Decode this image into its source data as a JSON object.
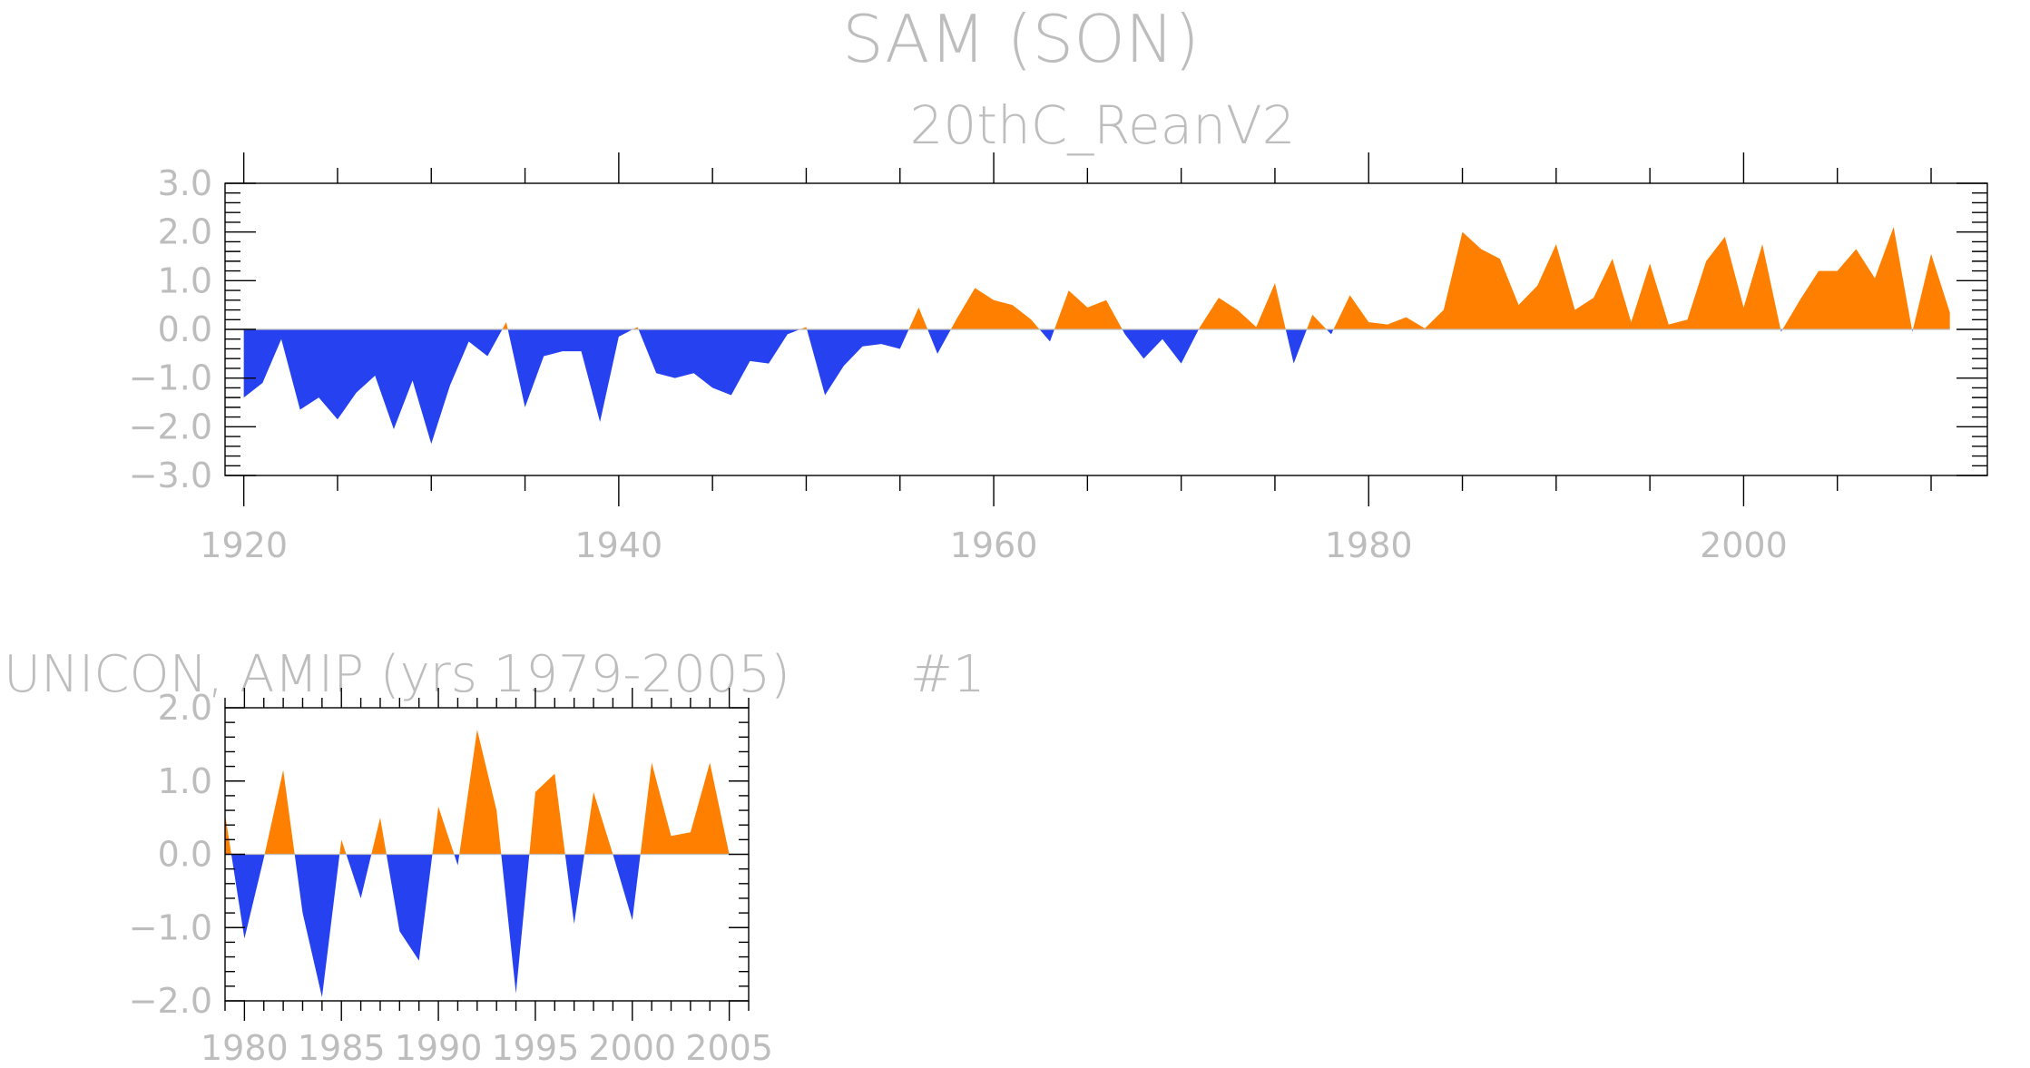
{
  "figure": {
    "title": "SAM (SON)",
    "colors": {
      "positive": "#ff8000",
      "negative": "#2541f0",
      "text": "#bdbdbd",
      "axis": "#000000"
    }
  },
  "chart_data": [
    {
      "type": "area",
      "subtitle": "20thC_ReanV2",
      "xlabel": "",
      "ylabel": "",
      "xlim": [
        1919,
        2013
      ],
      "ylim": [
        -3,
        3
      ],
      "x_ticks": [
        1920,
        1940,
        1960,
        1980,
        2000
      ],
      "x_tick_labels": [
        "1920",
        "1940",
        "1960",
        "1980",
        "2000"
      ],
      "y_ticks": [
        -3,
        -2,
        -1,
        0,
        1,
        2,
        3
      ],
      "y_tick_labels": [
        "−3.0",
        "−2.0",
        "−1.0",
        "0.0",
        "1.0",
        "2.0",
        "3.0"
      ],
      "grid": false,
      "x": [
        1920,
        1921,
        1922,
        1923,
        1924,
        1925,
        1926,
        1927,
        1928,
        1929,
        1930,
        1931,
        1932,
        1933,
        1934,
        1935,
        1936,
        1937,
        1938,
        1939,
        1940,
        1941,
        1942,
        1943,
        1944,
        1945,
        1946,
        1947,
        1948,
        1949,
        1950,
        1951,
        1952,
        1953,
        1954,
        1955,
        1956,
        1957,
        1958,
        1959,
        1960,
        1961,
        1962,
        1963,
        1964,
        1965,
        1966,
        1967,
        1968,
        1969,
        1970,
        1971,
        1972,
        1973,
        1974,
        1975,
        1976,
        1977,
        1978,
        1979,
        1980,
        1981,
        1982,
        1983,
        1984,
        1985,
        1986,
        1987,
        1988,
        1989,
        1990,
        1991,
        1992,
        1993,
        1994,
        1995,
        1996,
        1997,
        1998,
        1999,
        2000,
        2001,
        2002,
        2003,
        2004,
        2005,
        2006,
        2007,
        2008,
        2009,
        2010,
        2011
      ],
      "values": [
        -1.4,
        -1.1,
        -0.2,
        -1.65,
        -1.4,
        -1.85,
        -1.3,
        -0.95,
        -2.05,
        -1.05,
        -2.35,
        -1.15,
        -0.25,
        -0.55,
        0.15,
        -1.6,
        -0.55,
        -0.45,
        -0.45,
        -1.9,
        -0.15,
        0.05,
        -0.9,
        -1.0,
        -0.9,
        -1.2,
        -1.35,
        -0.65,
        -0.7,
        -0.1,
        0.05,
        -1.35,
        -0.75,
        -0.35,
        -0.3,
        -0.4,
        0.45,
        -0.5,
        0.2,
        0.85,
        0.6,
        0.5,
        0.2,
        -0.25,
        0.8,
        0.45,
        0.6,
        -0.1,
        -0.6,
        -0.2,
        -0.7,
        0.05,
        0.65,
        0.4,
        0.05,
        0.95,
        -0.7,
        0.3,
        -0.1,
        0.7,
        0.15,
        0.1,
        0.25,
        0.02,
        0.4,
        2.0,
        1.65,
        1.45,
        0.5,
        0.9,
        1.75,
        0.4,
        0.65,
        1.45,
        0.15,
        1.35,
        0.1,
        0.2,
        1.4,
        1.9,
        0.45,
        1.75,
        -0.05,
        0.6,
        1.2,
        1.2,
        1.65,
        1.05,
        2.1,
        -0.05,
        1.55,
        0.35
      ]
    },
    {
      "type": "area",
      "title": "UNICON, AMIP (yrs 1979-2005)",
      "label": "#1",
      "xlabel": "",
      "ylabel": "",
      "xlim": [
        1979,
        2006
      ],
      "ylim": [
        -2,
        2
      ],
      "x_ticks": [
        1980,
        1985,
        1990,
        1995,
        2000,
        2005
      ],
      "x_tick_labels": [
        "1980",
        "1985",
        "1990",
        "1995",
        "2000",
        "2005"
      ],
      "y_ticks": [
        -2,
        -1,
        0,
        1,
        2
      ],
      "y_tick_labels": [
        "−2.0",
        "−1.0",
        "0.0",
        "1.0",
        "2.0"
      ],
      "grid": false,
      "x": [
        1979,
        1980,
        1981,
        1982,
        1983,
        1984,
        1985,
        1986,
        1987,
        1988,
        1989,
        1990,
        1991,
        1992,
        1993,
        1994,
        1995,
        1996,
        1997,
        1998,
        1999,
        2000,
        2001,
        2002,
        2003,
        2004,
        2005
      ],
      "values": [
        0.55,
        -1.15,
        -0.05,
        1.15,
        -0.8,
        -1.95,
        0.2,
        -0.6,
        0.5,
        -1.05,
        -1.45,
        0.65,
        -0.15,
        1.7,
        0.6,
        -1.9,
        0.85,
        1.1,
        -0.95,
        0.85,
        0.0,
        -0.9,
        1.25,
        0.25,
        0.3,
        1.25,
        0.0
      ]
    }
  ]
}
